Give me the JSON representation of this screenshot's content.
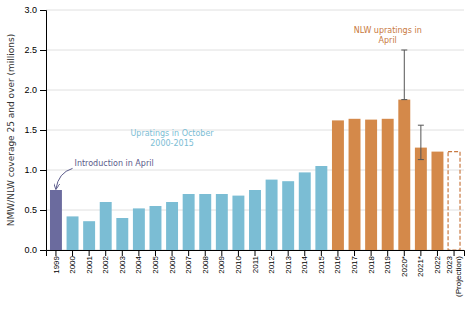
{
  "chart_data": {
    "type": "bar",
    "categories": [
      "1999",
      "2000",
      "2001",
      "2002",
      "2003",
      "2004",
      "2005",
      "2006",
      "2007",
      "2008",
      "2009",
      "2010",
      "2011",
      "2012",
      "2013",
      "2014",
      "2015",
      "2016",
      "2017",
      "2018",
      "2019",
      "2020*",
      "2021*",
      "2022",
      "2023\n(Projection)"
    ],
    "values": [
      0.75,
      0.42,
      0.36,
      0.6,
      0.4,
      0.52,
      0.55,
      0.6,
      0.7,
      0.7,
      0.7,
      0.68,
      0.75,
      0.88,
      0.86,
      0.97,
      1.05,
      1.62,
      1.64,
      1.63,
      1.64,
      1.88,
      1.28,
      1.23,
      null
    ],
    "projection_values": [
      null,
      null,
      null,
      null,
      null,
      null,
      null,
      null,
      null,
      null,
      null,
      null,
      null,
      null,
      null,
      null,
      null,
      null,
      null,
      null,
      null,
      null,
      null,
      null,
      1.23
    ],
    "error_up": [
      null,
      null,
      null,
      null,
      null,
      null,
      null,
      null,
      null,
      null,
      null,
      null,
      null,
      null,
      null,
      null,
      null,
      null,
      null,
      null,
      null,
      0.62,
      0.28,
      null,
      null
    ],
    "error_down": [
      null,
      null,
      null,
      null,
      null,
      null,
      null,
      null,
      null,
      null,
      null,
      null,
      null,
      null,
      null,
      null,
      null,
      null,
      null,
      null,
      null,
      0.0,
      0.15,
      null,
      null
    ],
    "colors": [
      "#6b6b9e",
      "#7bbdd4",
      "#7bbdd4",
      "#7bbdd4",
      "#7bbdd4",
      "#7bbdd4",
      "#7bbdd4",
      "#7bbdd4",
      "#7bbdd4",
      "#7bbdd4",
      "#7bbdd4",
      "#7bbdd4",
      "#7bbdd4",
      "#7bbdd4",
      "#7bbdd4",
      "#7bbdd4",
      "#7bbdd4",
      "#d4894a",
      "#d4894a",
      "#d4894a",
      "#d4894a",
      "#d4894a",
      "#d4894a",
      "#d4894a",
      "#c87941"
    ],
    "ylabel": "NMW/NLW coverage 25 and over (millions)",
    "ylim": [
      0.0,
      3.0
    ],
    "yticks": [
      {
        "value": 0.0,
        "label": "0.0"
      },
      0.5,
      {
        "value": 1.0,
        "label": "1.0"
      },
      1.5,
      {
        "value": 2.0,
        "label": "2.0"
      },
      2.5,
      {
        "value": 3.0,
        "label": "3.0"
      }
    ],
    "grid": true,
    "annotations": [
      {
        "text": "Introduction in April",
        "color": "#5a5a8a"
      },
      {
        "text": "Upratings in October\n2000-2015",
        "color": "#7bbdd4"
      },
      {
        "text": "NLW upratings in\nApril",
        "color": "#c87941"
      }
    ]
  }
}
